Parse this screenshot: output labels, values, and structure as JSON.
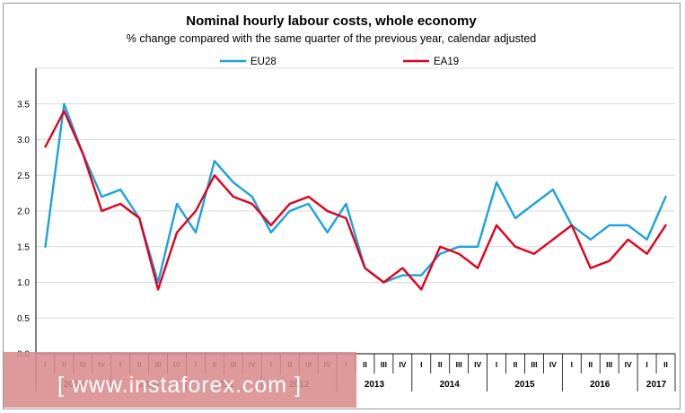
{
  "chart_data": {
    "type": "line",
    "title": "Nominal hourly labour costs, whole economy",
    "subtitle": "% change compared with the same quarter of the previous year, calendar adjusted",
    "ylim": [
      0,
      4
    ],
    "yticks": [
      "0.0",
      "0.5",
      "1.0",
      "1.5",
      "2.0",
      "2.5",
      "3.0",
      "3.5"
    ],
    "ytick_values": [
      0,
      0.5,
      1,
      1.5,
      2,
      2.5,
      3,
      3.5
    ],
    "grid": true,
    "legend_position": "top",
    "quarter_labels": [
      "I",
      "II",
      "III",
      "IV",
      "I",
      "II",
      "III",
      "IV",
      "I",
      "II",
      "III",
      "IV",
      "I",
      "II",
      "III",
      "IV",
      "I",
      "II",
      "III",
      "IV",
      "I",
      "II",
      "III",
      "IV",
      "I",
      "II",
      "III",
      "IV",
      "I",
      "II",
      "III",
      "IV",
      "I",
      "II"
    ],
    "years": [
      {
        "label": "2009",
        "start": 0,
        "count": 4
      },
      {
        "label": "2010",
        "start": 4,
        "count": 4
      },
      {
        "label": "2011",
        "start": 8,
        "count": 4
      },
      {
        "label": "2012",
        "start": 12,
        "count": 4
      },
      {
        "label": "2013",
        "start": 16,
        "count": 4
      },
      {
        "label": "2014",
        "start": 20,
        "count": 4
      },
      {
        "label": "2015",
        "start": 24,
        "count": 4
      },
      {
        "label": "2016",
        "start": 28,
        "count": 4
      },
      {
        "label": "2017",
        "start": 32,
        "count": 2
      }
    ],
    "series": [
      {
        "name": "EU28",
        "color": "#1aa3dd",
        "values": [
          1.5,
          3.5,
          2.8,
          2.2,
          2.3,
          1.9,
          1.0,
          2.1,
          1.7,
          2.7,
          2.4,
          2.2,
          1.7,
          2.0,
          2.1,
          1.7,
          2.1,
          1.2,
          1.0,
          1.1,
          1.1,
          1.4,
          1.5,
          1.5,
          2.4,
          1.9,
          2.1,
          2.3,
          1.8,
          1.6,
          1.8,
          1.8,
          1.6,
          2.2
        ]
      },
      {
        "name": "EA19",
        "color": "#e3001b",
        "values": [
          2.9,
          3.4,
          2.8,
          2.0,
          2.1,
          1.9,
          0.9,
          1.7,
          2.0,
          2.5,
          2.2,
          2.1,
          1.8,
          2.1,
          2.2,
          2.0,
          1.9,
          1.2,
          1.0,
          1.2,
          0.9,
          1.5,
          1.4,
          1.2,
          1.8,
          1.5,
          1.4,
          1.6,
          1.8,
          1.2,
          1.3,
          1.6,
          1.4,
          1.8
        ]
      }
    ]
  },
  "watermark": {
    "text": "[ www.instaforex.com ]",
    "band_color": "#d98b8d"
  }
}
